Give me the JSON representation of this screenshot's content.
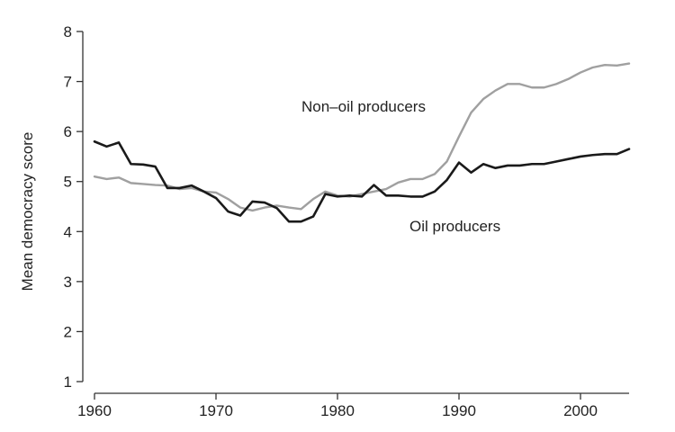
{
  "chart_data": {
    "type": "line",
    "title": "",
    "xlabel": "",
    "ylabel": "Mean democracy score",
    "xlim": [
      1960,
      2004
    ],
    "ylim": [
      1,
      8
    ],
    "x_ticks": [
      1960,
      1970,
      1980,
      1990,
      2000
    ],
    "y_ticks": [
      1,
      2,
      3,
      4,
      5,
      6,
      7,
      8
    ],
    "grid": false,
    "legend": "none",
    "x": [
      1960,
      1961,
      1962,
      1963,
      1964,
      1965,
      1966,
      1967,
      1968,
      1969,
      1970,
      1971,
      1972,
      1973,
      1974,
      1975,
      1976,
      1977,
      1978,
      1979,
      1980,
      1981,
      1982,
      1983,
      1984,
      1985,
      1986,
      1987,
      1988,
      1989,
      1990,
      1991,
      1992,
      1993,
      1994,
      1995,
      1996,
      1997,
      1998,
      1999,
      2000,
      2001,
      2002,
      2003,
      2004
    ],
    "series": [
      {
        "name": "Non–oil producers",
        "color": "#a0a0a0",
        "values": [
          5.1,
          5.05,
          5.08,
          4.97,
          4.95,
          4.93,
          4.92,
          4.85,
          4.87,
          4.8,
          4.78,
          4.65,
          4.48,
          4.42,
          4.48,
          4.52,
          4.48,
          4.45,
          4.65,
          4.8,
          4.72,
          4.7,
          4.75,
          4.8,
          4.85,
          4.98,
          5.05,
          5.05,
          5.15,
          5.4,
          5.9,
          6.38,
          6.65,
          6.82,
          6.95,
          6.95,
          6.88,
          6.88,
          6.95,
          7.05,
          7.18,
          7.28,
          7.33,
          7.32,
          7.36
        ]
      },
      {
        "name": "Oil producers",
        "color": "#1a1a1a",
        "values": [
          5.8,
          5.7,
          5.78,
          5.35,
          5.34,
          5.3,
          4.87,
          4.87,
          4.92,
          4.8,
          4.67,
          4.4,
          4.32,
          4.6,
          4.58,
          4.47,
          4.2,
          4.2,
          4.3,
          4.75,
          4.7,
          4.72,
          4.7,
          4.93,
          4.72,
          4.72,
          4.7,
          4.7,
          4.8,
          5.03,
          5.38,
          5.18,
          5.35,
          5.27,
          5.32,
          5.32,
          5.35,
          5.35,
          5.4,
          5.45,
          5.5,
          5.53,
          5.55,
          5.55,
          5.65
        ]
      }
    ]
  }
}
